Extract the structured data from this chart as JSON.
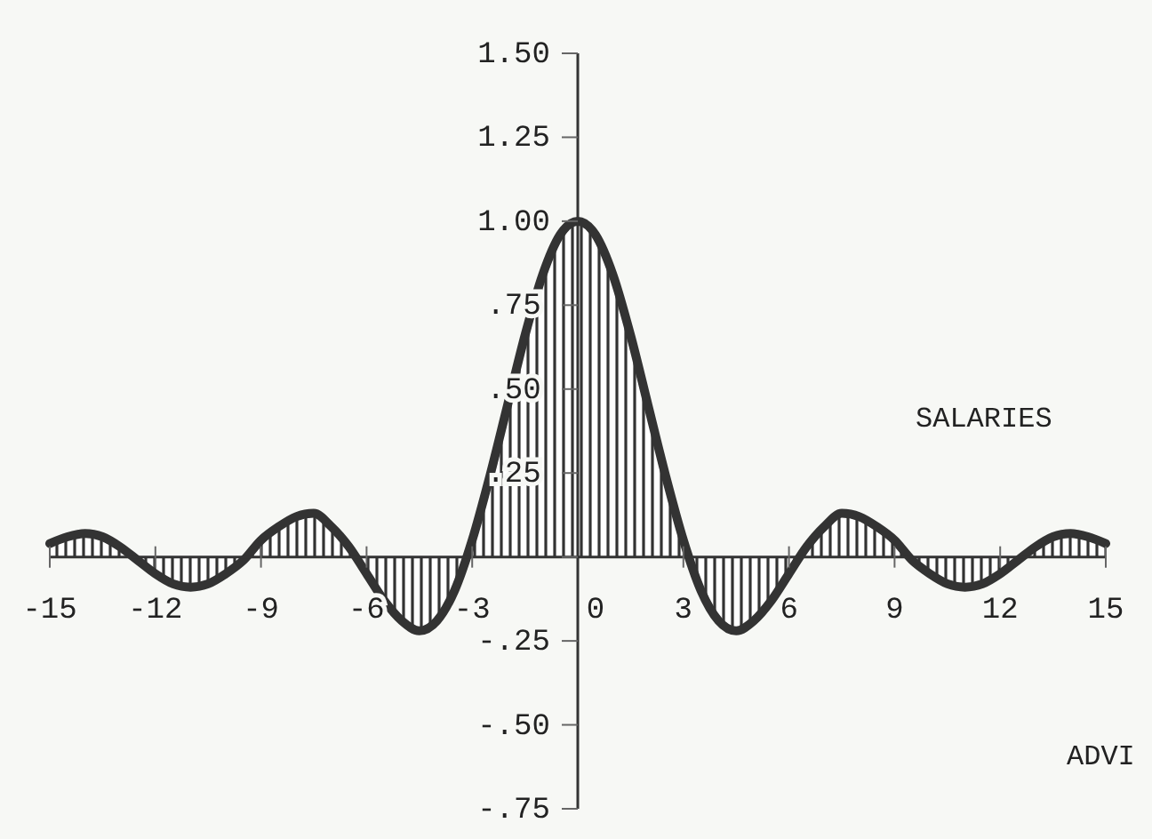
{
  "chart_data": {
    "type": "area",
    "color": "#333333",
    "x": [
      -15,
      -14.5,
      -14,
      -13.5,
      -13,
      -12.5,
      -12,
      -11.5,
      -11,
      -10.5,
      -10,
      -9.5,
      -9,
      -8.5,
      -8,
      -7.5,
      -7,
      -6.5,
      -6,
      -5.5,
      -5,
      -4.5,
      -4,
      -3.5,
      -3,
      -2.5,
      -2,
      -1.5,
      -1,
      -0.5,
      0,
      0.5,
      1,
      1.5,
      2,
      2.5,
      3,
      3.5,
      4,
      4.5,
      5,
      5.5,
      6,
      6.5,
      7,
      7.5,
      8,
      8.5,
      9,
      9.5,
      10,
      10.5,
      11,
      11.5,
      12,
      12.5,
      13,
      13.5,
      14,
      14.5,
      15
    ],
    "values": [
      0.04,
      0.06,
      0.07,
      0.06,
      0.03,
      -0.01,
      -0.05,
      -0.08,
      -0.09,
      -0.08,
      -0.05,
      -0.01,
      0.05,
      0.09,
      0.12,
      0.13,
      0.09,
      0.03,
      -0.05,
      -0.13,
      -0.19,
      -0.22,
      -0.19,
      -0.1,
      0.05,
      0.24,
      0.45,
      0.66,
      0.84,
      0.96,
      1.0,
      0.96,
      0.84,
      0.66,
      0.45,
      0.24,
      0.05,
      -0.1,
      -0.19,
      -0.22,
      -0.19,
      -0.13,
      -0.05,
      0.03,
      0.09,
      0.13,
      0.12,
      0.09,
      0.05,
      -0.01,
      -0.05,
      -0.08,
      -0.09,
      -0.08,
      -0.05,
      -0.01,
      0.03,
      0.06,
      0.07,
      0.06,
      0.04
    ],
    "xlim": [
      -15,
      15
    ],
    "ylim": [
      -0.75,
      1.5
    ],
    "xticks": [
      {
        "value": -15,
        "label": "-15"
      },
      {
        "value": -12,
        "label": "-12"
      },
      {
        "value": -9,
        "label": "-9"
      },
      {
        "value": -6,
        "label": "-6"
      },
      {
        "value": -3,
        "label": "-3"
      },
      0,
      3,
      6,
      9,
      12,
      15
    ],
    "yticks": [
      {
        "value": 1.5,
        "label": "1.50"
      },
      {
        "value": 1.25,
        "label": "1.25"
      },
      {
        "value": 1,
        "label": "1.00"
      },
      {
        "value": 0.75,
        "label": ".75"
      },
      {
        "value": 0.5,
        "label": ".50"
      },
      {
        "value": 0.25,
        "label": ".25"
      },
      {
        "value": 0,
        "label": null
      },
      {
        "value": -0.25,
        "label": "-.25"
      },
      {
        "value": -0.5,
        "label": "-.50"
      },
      {
        "value": -0.75,
        "label": "-.75"
      }
    ],
    "annotations": [
      "SALARIES",
      "ADVI"
    ]
  }
}
